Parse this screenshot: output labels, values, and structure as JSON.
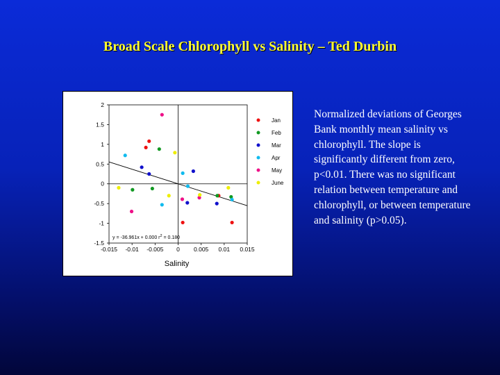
{
  "title": "Broad Scale Chlorophyll vs Salinity – Ted Durbin",
  "description": "Normalized deviations of Georges Bank monthly mean salinity vs chlorophyll. The slope is significantly different from zero, p<0.01. There was no significant relation between temperature and chlorophyll, or between temperature and salinity (p>0.05).",
  "chart_data": {
    "type": "scatter",
    "xlabel": "Salinity",
    "ylabel": "",
    "xlim": [
      -0.015,
      0.015
    ],
    "ylim": [
      -1.5,
      2
    ],
    "x_ticks": [
      "-0.015",
      "-0.01",
      "-0.005",
      "0",
      "0.005",
      "0.01",
      "0.015"
    ],
    "x_tick_values": [
      -0.015,
      -0.01,
      -0.005,
      0,
      0.005,
      0.01,
      0.015
    ],
    "y_ticks": [
      "2",
      "1.5",
      "1",
      "0.5",
      "0",
      "-0.5",
      "-1",
      "-1.5"
    ],
    "y_tick_values": [
      2,
      1.5,
      1,
      0.5,
      0,
      -0.5,
      -1,
      -1.5
    ],
    "legend_position": "right",
    "fit_line": {
      "slope": -36.961,
      "intercept": 0.0
    },
    "equation_text": {
      "y_part": "y =  -36.961x + 0.000",
      "r_part": "r",
      "sup": "2",
      "r_value": " = 0.180"
    },
    "series": [
      {
        "name": "Jan",
        "color": "#ee1111",
        "points": [
          [
            -0.0063,
            1.08
          ],
          [
            -0.007,
            0.92
          ],
          [
            0.001,
            -0.98
          ],
          [
            0.0088,
            -0.3
          ],
          [
            0.0117,
            -0.98
          ]
        ]
      },
      {
        "name": "Feb",
        "color": "#119922",
        "points": [
          [
            -0.0041,
            0.88
          ],
          [
            -0.0099,
            -0.15
          ],
          [
            -0.0056,
            -0.12
          ],
          [
            0.0115,
            -0.33
          ],
          [
            0.0085,
            -0.3
          ]
        ]
      },
      {
        "name": "Mar",
        "color": "#1111cc",
        "points": [
          [
            -0.0079,
            0.42
          ],
          [
            -0.0063,
            0.25
          ],
          [
            0.0033,
            0.32
          ],
          [
            0.002,
            -0.48
          ],
          [
            0.0084,
            -0.5
          ]
        ]
      },
      {
        "name": "Apr",
        "color": "#11bbee",
        "points": [
          [
            -0.0115,
            0.72
          ],
          [
            0.001,
            0.27
          ],
          [
            0.0021,
            -0.06
          ],
          [
            0.0117,
            -0.4
          ],
          [
            -0.0035,
            -0.53
          ]
        ]
      },
      {
        "name": "May",
        "color": "#ee1188",
        "points": [
          [
            -0.0035,
            1.75
          ],
          [
            -0.0101,
            -0.7
          ],
          [
            0.0009,
            -0.39
          ],
          [
            0.0046,
            -0.35
          ]
        ]
      },
      {
        "name": "June",
        "color": "#eeee00",
        "points": [
          [
            -0.0129,
            -0.1
          ],
          [
            -0.0007,
            0.79
          ],
          [
            -0.002,
            -0.3
          ],
          [
            0.0047,
            -0.28
          ],
          [
            0.0109,
            -0.1
          ]
        ]
      }
    ]
  }
}
